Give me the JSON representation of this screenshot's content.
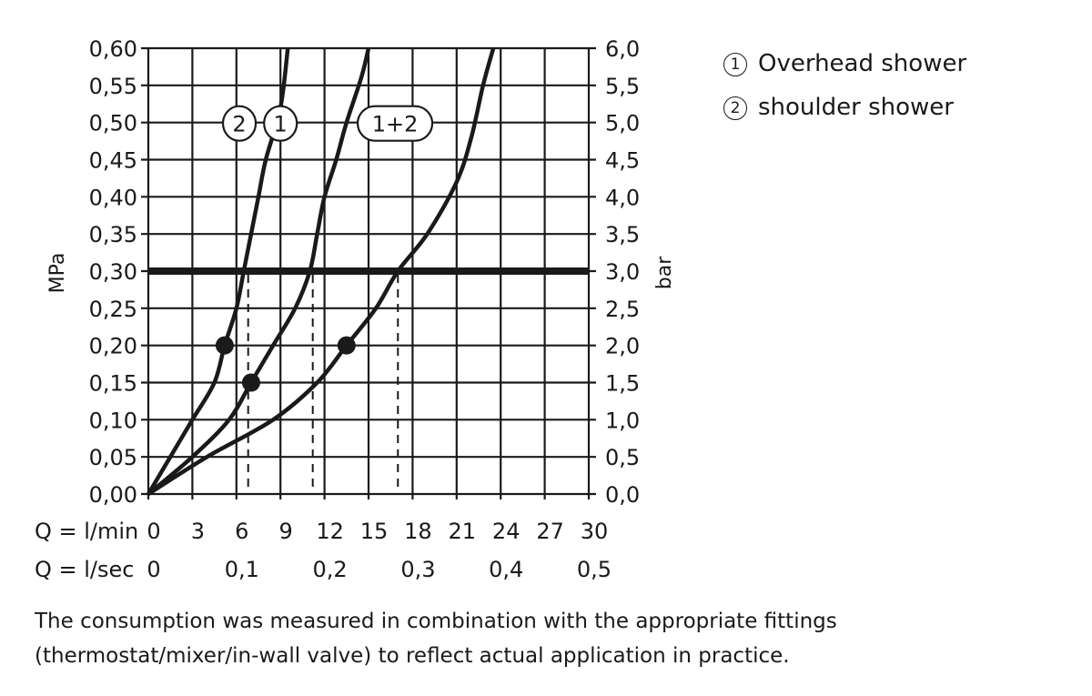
{
  "chart_data": {
    "type": "line",
    "y_left": {
      "label": "MPa",
      "ylim": [
        0,
        0.6
      ],
      "ticks": [
        "0,00",
        "0,05",
        "0,10",
        "0,15",
        "0,20",
        "0,25",
        "0,30",
        "0,35",
        "0,40",
        "0,45",
        "0,50",
        "0,55",
        "0,60"
      ]
    },
    "y_right": {
      "label": "bar",
      "ylim": [
        0,
        6
      ],
      "ticks": [
        "0,0",
        "0,5",
        "1,0",
        "1,5",
        "2,0",
        "2,5",
        "3,0",
        "3,5",
        "4,0",
        "4,5",
        "5,0",
        "5,5",
        "6,0"
      ]
    },
    "x_lmin": {
      "label": "Q = l/min",
      "xlim": [
        0,
        30
      ],
      "ticks": [
        "0",
        "3",
        "6",
        "9",
        "12",
        "15",
        "18",
        "21",
        "24",
        "27",
        "30"
      ]
    },
    "x_lsec": {
      "label": "Q = l/sec",
      "ticks": [
        "0",
        "0,1",
        "0,2",
        "0,3",
        "0,4",
        "0,5"
      ]
    },
    "grid": true,
    "reference_line": {
      "y": 0.3
    },
    "series": [
      {
        "name": "2",
        "x": [
          0,
          1.5,
          3,
          4.5,
          5.2,
          6,
          6.5,
          7,
          7.5,
          8,
          9,
          9.5
        ],
        "y": [
          0,
          0.05,
          0.1,
          0.15,
          0.2,
          0.25,
          0.3,
          0.35,
          0.4,
          0.45,
          0.52,
          0.6
        ]
      },
      {
        "name": "1",
        "x": [
          0,
          3,
          5.5,
          7,
          8.5,
          10,
          11,
          11.5,
          12,
          12.8,
          13.5,
          14.5,
          15
        ],
        "y": [
          0,
          0.05,
          0.1,
          0.15,
          0.2,
          0.25,
          0.3,
          0.35,
          0.4,
          0.45,
          0.5,
          0.56,
          0.6
        ]
      },
      {
        "name": "1+2",
        "x": [
          0,
          4,
          8.5,
          11.5,
          13.5,
          15.5,
          17,
          19,
          21,
          22,
          22.8,
          23.5
        ],
        "y": [
          0,
          0.05,
          0.1,
          0.15,
          0.2,
          0.25,
          0.3,
          0.35,
          0.42,
          0.48,
          0.55,
          0.6
        ]
      }
    ],
    "markers": [
      {
        "x": 5.2,
        "y": 0.2
      },
      {
        "x": 7,
        "y": 0.15
      },
      {
        "x": 13.5,
        "y": 0.2
      }
    ],
    "dashed_drops": [
      6.8,
      11.2,
      17
    ]
  },
  "legend": [
    {
      "symbol": "①",
      "text": "Overhead shower"
    },
    {
      "symbol": "②",
      "text": "shoulder shower"
    }
  ],
  "note": "The consumption was measured in combination with the appropriate fittings (thermostat/mixer/in-wall valve) to reflect actual application in practice."
}
